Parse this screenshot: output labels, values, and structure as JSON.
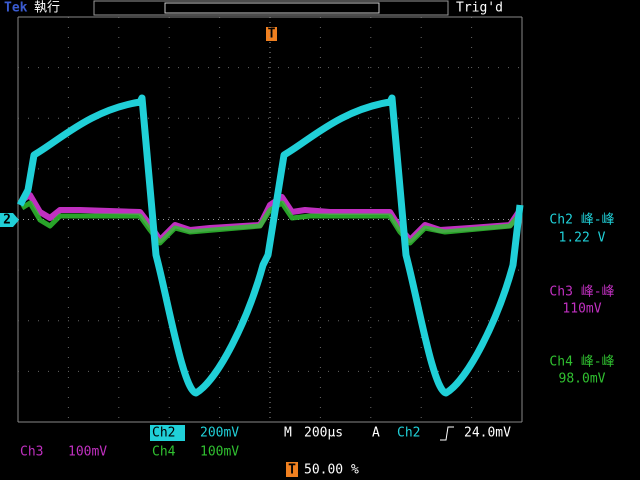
{
  "header": {
    "brand": "Tek",
    "status": "執行",
    "trigger_marker": "T",
    "trigger_state": "Trig'd"
  },
  "channel_marker": "2",
  "measurements": [
    {
      "label": "Ch2 峰-峰",
      "value": "1.22 V"
    },
    {
      "label": "Ch3 峰-峰",
      "value": "110mV"
    },
    {
      "label": "Ch4 峰-峰",
      "value": "98.0mV"
    }
  ],
  "status_bar": {
    "ch2": "Ch2",
    "ch2_scale": "200mV",
    "timebase_label": "M",
    "timebase": "200µs",
    "trigger_mode": "A",
    "trigger_source": "Ch2",
    "trigger_level": "24.0mV",
    "ch3": "Ch3",
    "ch3_scale": "100mV",
    "ch4": "Ch4",
    "ch4_scale": "100mV",
    "position_marker": "T",
    "position": "50.00 %"
  }
}
